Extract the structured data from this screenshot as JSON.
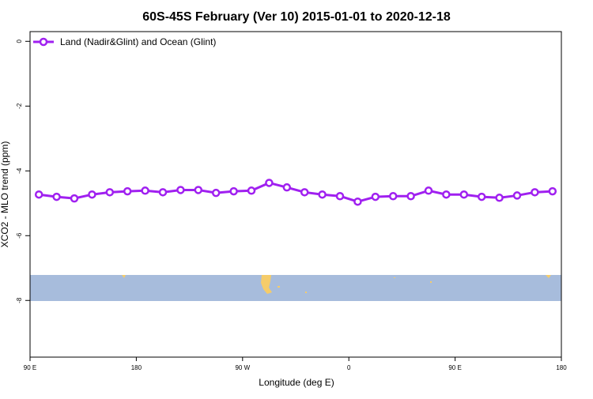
{
  "chart_data": {
    "type": "line",
    "title": "60S-45S February (Ver 10)   2015-01-01 to 2020-12-18",
    "x_label": "Longitude (deg E)",
    "y_label": "XCO2 - MLO trend (ppm)",
    "x": [
      97.5,
      112.5,
      127.5,
      142.5,
      157.5,
      172.5,
      187.5,
      202.5,
      217.5,
      232.5,
      247.5,
      262.5,
      277.5,
      292.5,
      307.5,
      322.5,
      337.5,
      352.5,
      367.5,
      382.5,
      397.5,
      412.5,
      427.5,
      442.5,
      457.5,
      472.5,
      487.5,
      502.5,
      517.5,
      532.5
    ],
    "series": [
      {
        "name": "Land (Nadir&Glint) and Ocean (Glint)",
        "color": "#a020f0",
        "values": [
          -4.73,
          -4.8,
          -4.85,
          -4.73,
          -4.66,
          -4.63,
          -4.61,
          -4.66,
          -4.59,
          -4.59,
          -4.68,
          -4.63,
          -4.61,
          -4.37,
          -4.51,
          -4.66,
          -4.73,
          -4.78,
          -4.95,
          -4.8,
          -4.78,
          -4.78,
          -4.61,
          -4.73,
          -4.73,
          -4.8,
          -4.83,
          -4.76,
          -4.66,
          -4.63
        ]
      }
    ],
    "xlim": [
      90,
      540
    ],
    "xticks": [
      {
        "value": 90,
        "label": "90 E"
      },
      {
        "value": 180,
        "label": "180"
      },
      {
        "value": 270,
        "label": "90 W"
      },
      {
        "value": 360,
        "label": "0"
      },
      {
        "value": 450,
        "label": "90 E"
      },
      {
        "value": 540,
        "label": "180"
      }
    ],
    "ylim": [
      -9.75,
      0.3
    ],
    "yticks": [
      0,
      -2,
      -4,
      -6,
      -8
    ],
    "legend": "top-left"
  }
}
